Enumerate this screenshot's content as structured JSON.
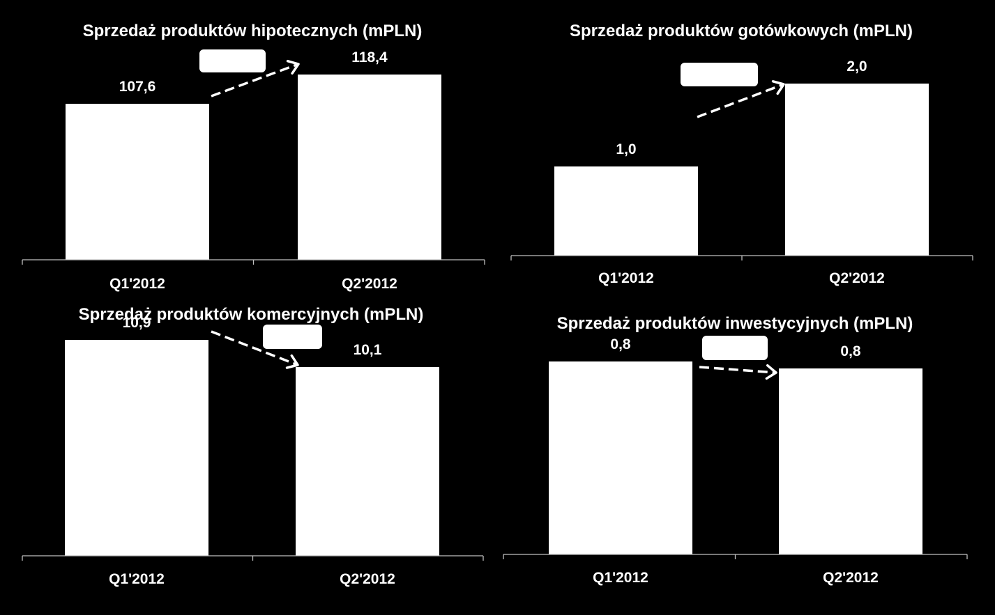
{
  "chart_data": [
    {
      "type": "bar",
      "title": "Sprzedaż produktów hipotecznych (mPLN)",
      "categories": [
        "Q1'2012",
        "Q2'2012"
      ],
      "values": [
        107.6,
        118.4
      ],
      "value_labels": [
        "107,6",
        "118,4"
      ],
      "xlabel": "",
      "ylabel": "",
      "grid": false,
      "legend": "none",
      "bar_color": "#ffffff",
      "annotation": {
        "type": "dashed-arrow",
        "direction": "up",
        "label_box": ""
      }
    },
    {
      "type": "bar",
      "title": "Sprzedaż produktów gotówkowych (mPLN)",
      "categories": [
        "Q1'2012",
        "Q2'2012"
      ],
      "values": [
        1.0,
        2.0
      ],
      "value_labels": [
        "1,0",
        "2,0"
      ],
      "xlabel": "",
      "ylabel": "",
      "grid": false,
      "legend": "none",
      "bar_color": "#ffffff",
      "annotation": {
        "type": "dashed-arrow",
        "direction": "up",
        "label_box": ""
      }
    },
    {
      "type": "bar",
      "title": "Sprzedaż produktów komercyjnych  (mPLN)",
      "categories": [
        "Q1'2012",
        "Q2'2012"
      ],
      "values": [
        10.9,
        10.1
      ],
      "value_labels": [
        "10,9",
        "10,1"
      ],
      "xlabel": "",
      "ylabel": "",
      "grid": false,
      "legend": "none",
      "bar_color": "#ffffff",
      "annotation": {
        "type": "dashed-arrow",
        "direction": "down",
        "label_box": ""
      }
    },
    {
      "type": "bar",
      "title": "Sprzedaż produktów inwestycyjnych (mPLN)",
      "categories": [
        "Q1'2012",
        "Q2'2012"
      ],
      "values": [
        0.8,
        0.8
      ],
      "value_labels": [
        "0,8",
        "0,8"
      ],
      "xlabel": "",
      "ylabel": "",
      "grid": false,
      "legend": "none",
      "bar_color": "#ffffff",
      "annotation": {
        "type": "dashed-arrow",
        "direction": "flat",
        "label_box": ""
      }
    }
  ],
  "colors": {
    "background": "#000000",
    "bars": "#ffffff",
    "text": "#ffffff",
    "axis": "#bfbfbf"
  }
}
